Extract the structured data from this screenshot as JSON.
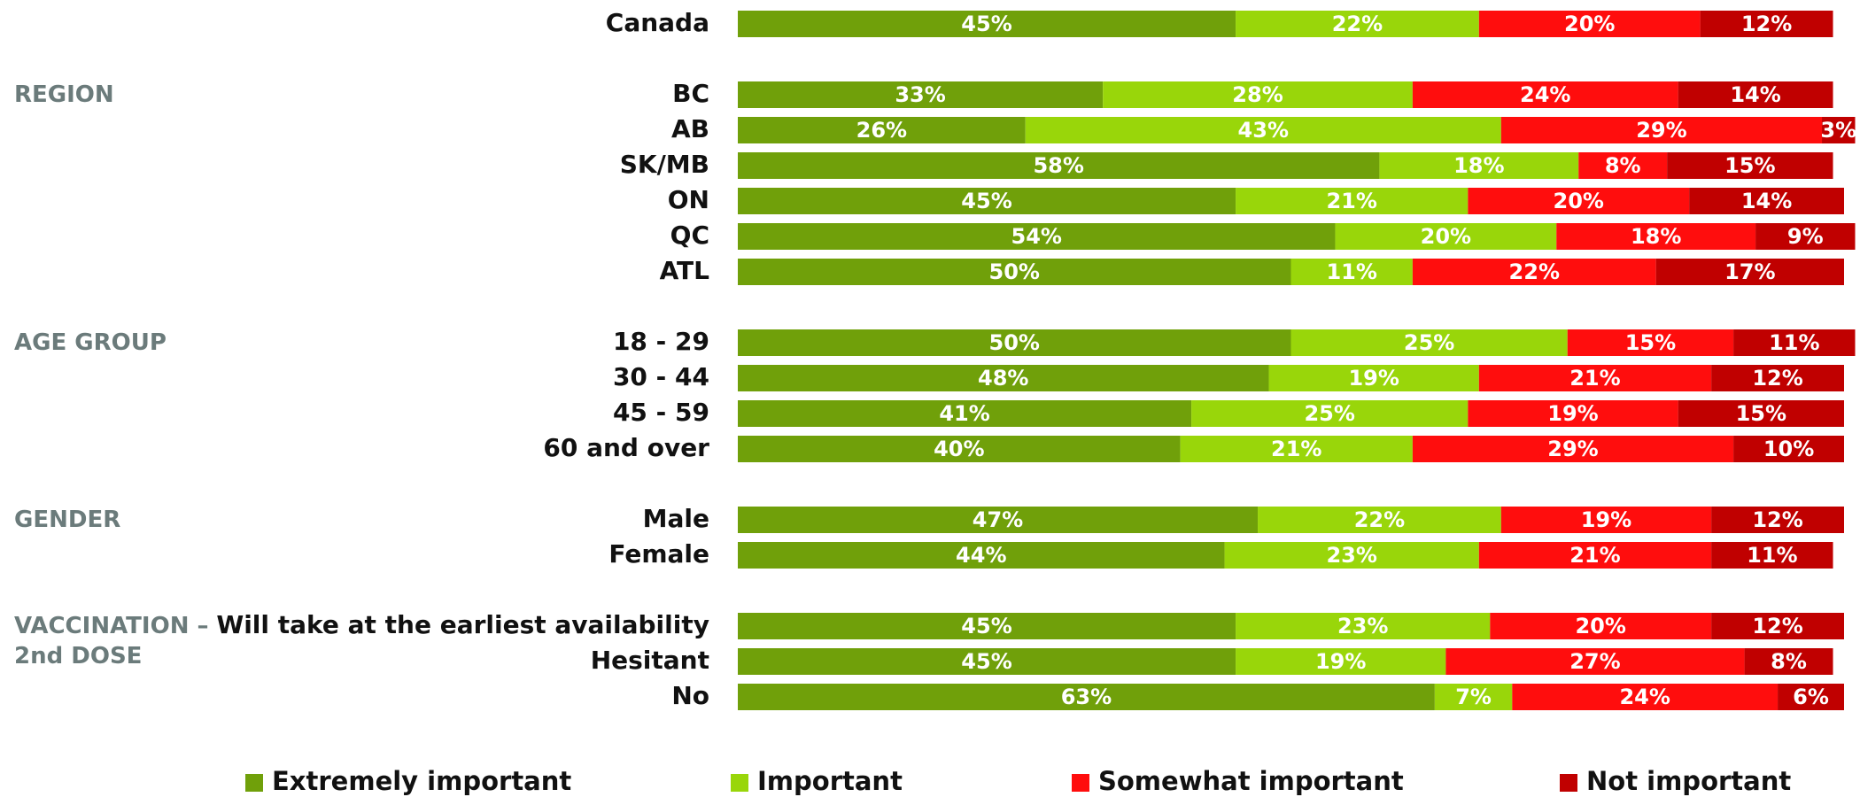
{
  "chart_data": {
    "type": "stacked-bar-horizontal",
    "groups": [
      {
        "categories": [
          "Canada"
        ]
      },
      {
        "name": "REGION",
        "categories": [
          "BC",
          "AB",
          "SK/MB",
          "ON",
          "QC",
          "ATL"
        ]
      },
      {
        "name": "AGE GROUP",
        "categories": [
          "18 - 29",
          "30 - 44",
          "45 - 59",
          "60 and over"
        ]
      },
      {
        "name": "GENDER",
        "categories": [
          "Male",
          "Female"
        ]
      },
      {
        "name": "VACCINATION – 2nd DOSE",
        "categories": [
          "Will take at the earliest availability",
          "Hesitant",
          "No"
        ]
      }
    ],
    "xlim": [
      0,
      100
    ],
    "series": [
      {
        "name": "Extremely important",
        "color": "#70a00a",
        "values": [
          45,
          33,
          26,
          58,
          45,
          54,
          50,
          50,
          48,
          41,
          40,
          47,
          44,
          45,
          45,
          63
        ],
        "value_labels": [
          "45%",
          "33%",
          "26%",
          "58%",
          "45%",
          "54%",
          "50%",
          "50%",
          "48%",
          "41%",
          "40%",
          "47%",
          "44%",
          "45%",
          "45%",
          "63%"
        ]
      },
      {
        "name": "Important",
        "color": "#99d60a",
        "values": [
          22,
          28,
          43,
          18,
          21,
          20,
          11,
          25,
          19,
          25,
          21,
          22,
          23,
          23,
          19,
          7
        ],
        "value_labels": [
          "22%",
          "28%",
          "43%",
          "18%",
          "21%",
          "20%",
          "11%",
          "25%",
          "19%",
          "25%",
          "21%",
          "22%",
          "23%",
          "23%",
          "19%",
          "7%"
        ]
      },
      {
        "name": "Somewhat important",
        "color": "#ff0d0d",
        "values": [
          20,
          24,
          29,
          8,
          20,
          18,
          22,
          15,
          21,
          19,
          29,
          19,
          21,
          20,
          27,
          24
        ],
        "value_labels": [
          "20%",
          "24%",
          "29%",
          "8%",
          "20%",
          "18%",
          "22%",
          "15%",
          "21%",
          "19%",
          "29%",
          "19%",
          "21%",
          "20%",
          "27%",
          "24%"
        ]
      },
      {
        "name": "Not important",
        "color": "#c00000",
        "values": [
          12,
          14,
          3,
          15,
          14,
          9,
          17,
          11,
          12,
          15,
          10,
          12,
          11,
          12,
          8,
          6
        ],
        "value_labels": [
          "12%",
          "14%",
          "3%",
          "15%",
          "14%",
          "9%",
          "17%",
          "11%",
          "12%",
          "15%",
          "10%",
          "12%",
          "11%",
          "12%",
          "8%",
          "6%"
        ]
      }
    ]
  }
}
